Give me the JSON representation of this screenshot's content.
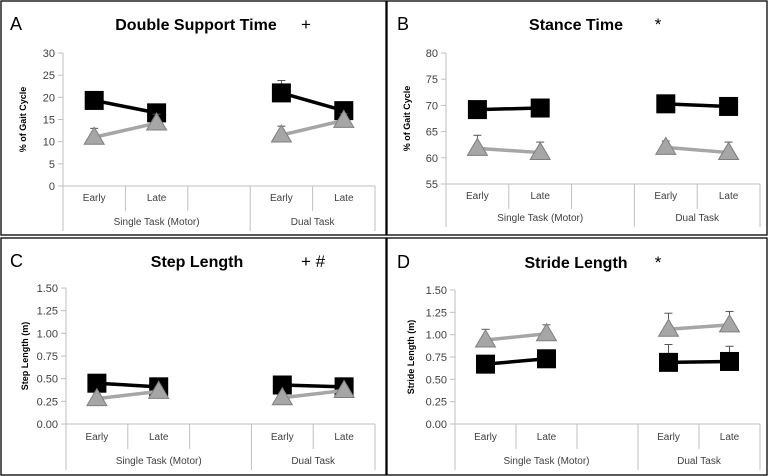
{
  "figure": {
    "colors": {
      "early_series": "#000000",
      "late_series": "#a6a6a6",
      "late_series_stroke": "#7f7f7f",
      "axis": "#bfbfbf",
      "panel_border": "#000000",
      "error_bar": "#555555"
    }
  },
  "chart_data": [
    {
      "panel_label": "A",
      "title": "Double Support Time",
      "marker": "+",
      "type": "line",
      "ylabel": "% of Gait Cycle",
      "ylim": [
        0,
        30
      ],
      "yticks": [
        "0",
        "5",
        "10",
        "15",
        "20",
        "25",
        "30"
      ],
      "categories": [
        "Early",
        "Late",
        "",
        "Early",
        "Late"
      ],
      "groups": [
        "Single Task (Motor)",
        "Dual Task"
      ],
      "series": [
        {
          "style": "black-square",
          "segments": [
            [
              19.3,
              16.5
            ],
            [
              21.0,
              17.0
            ]
          ],
          "errors": [
            [
              0.7,
              0.7
            ],
            [
              2.8,
              0.9
            ]
          ]
        },
        {
          "style": "gray-triangle",
          "segments": [
            [
              11.0,
              14.2
            ],
            [
              11.5,
              14.8
            ]
          ],
          "errors": [
            [
              2.0,
              2.0
            ],
            [
              2.0,
              1.5
            ]
          ]
        }
      ]
    },
    {
      "panel_label": "B",
      "title": "Stance Time",
      "marker": "*",
      "type": "line",
      "ylabel": "% of Gait Cycle",
      "ylim": [
        55,
        80
      ],
      "yticks": [
        "55",
        "60",
        "65",
        "70",
        "75",
        "80"
      ],
      "categories": [
        "Early",
        "Late",
        "",
        "Early",
        "Late"
      ],
      "groups": [
        "Single Task (Motor)",
        "Dual Task"
      ],
      "series": [
        {
          "style": "black-square",
          "segments": [
            [
              69.2,
              69.5
            ],
            [
              70.3,
              69.8
            ]
          ],
          "errors": [
            [
              1.5,
              0.8
            ],
            [
              0.8,
              0.6
            ]
          ]
        },
        {
          "style": "gray-triangle",
          "segments": [
            [
              61.8,
              61.0
            ],
            [
              62.0,
              61.0
            ]
          ],
          "errors": [
            [
              2.5,
              2.0
            ],
            [
              1.2,
              2.0
            ]
          ]
        }
      ]
    },
    {
      "panel_label": "C",
      "title": "Step Length",
      "marker": "+  #",
      "type": "line",
      "ylabel": "Step Length (m)",
      "ylim": [
        0,
        1.5
      ],
      "yticks": [
        "0.00",
        "0.25",
        "0.50",
        "0.75",
        "1.00",
        "1.25",
        "1.50"
      ],
      "categories": [
        "Early",
        "Late",
        "",
        "Early",
        "Late"
      ],
      "groups": [
        "Single Task (Motor)",
        "Dual Task"
      ],
      "series": [
        {
          "style": "black-square",
          "segments": [
            [
              0.45,
              0.41
            ],
            [
              0.43,
              0.41
            ]
          ],
          "errors": [
            [
              0.03,
              0.03
            ],
            [
              0.03,
              0.03
            ]
          ]
        },
        {
          "style": "gray-triangle",
          "segments": [
            [
              0.28,
              0.36
            ],
            [
              0.29,
              0.37
            ]
          ],
          "errors": [
            [
              0.05,
              0.05
            ],
            [
              0.05,
              0.05
            ]
          ]
        }
      ]
    },
    {
      "panel_label": "D",
      "title": "Stride Length",
      "marker": "*",
      "type": "line",
      "ylabel": "Stride Length (m)",
      "ylim": [
        0,
        1.5
      ],
      "yticks": [
        "0.00",
        "0.25",
        "0.50",
        "0.75",
        "1.00",
        "1.25",
        "1.50"
      ],
      "categories": [
        "Early",
        "Late",
        "",
        "Early",
        "Late"
      ],
      "groups": [
        "Single Task (Motor)",
        "Dual Task"
      ],
      "series": [
        {
          "style": "black-square",
          "segments": [
            [
              0.67,
              0.73
            ],
            [
              0.69,
              0.7
            ]
          ],
          "errors": [
            [
              0.08,
              0.08
            ],
            [
              0.2,
              0.17
            ]
          ]
        },
        {
          "style": "gray-triangle",
          "segments": [
            [
              0.94,
              1.01
            ],
            [
              1.06,
              1.11
            ]
          ],
          "errors": [
            [
              0.12,
              0.1
            ],
            [
              0.18,
              0.15
            ]
          ]
        }
      ]
    }
  ]
}
